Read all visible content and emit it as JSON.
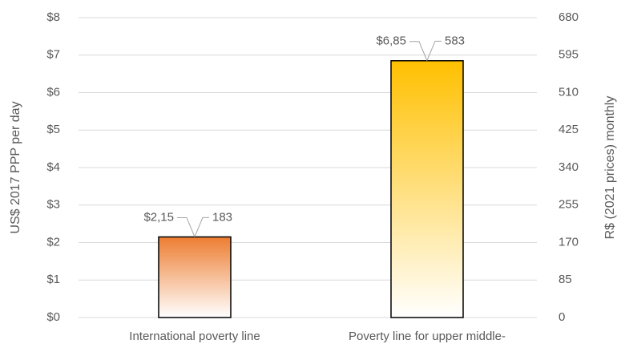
{
  "chart_data": {
    "type": "bar",
    "categories": [
      "International poverty line",
      "Poverty line for upper middle-"
    ],
    "series": [
      {
        "values": [
          2.15,
          6.85
        ],
        "value_labels": [
          "$2,15",
          "$6,85"
        ],
        "colors": [
          "#ED7D31",
          "#FFC000"
        ]
      },
      {
        "axis": "y2",
        "values": [
          183,
          583
        ]
      }
    ],
    "ylabel": "US$ 2017 PPP per day",
    "y2label": "R$ (2021 prices) monthly",
    "ylim": [
      0,
      8
    ],
    "yticks": [
      {
        "value": 0,
        "label": "$0"
      },
      {
        "value": 1,
        "label": "$1"
      },
      {
        "value": 2,
        "label": "$2"
      },
      {
        "value": 3,
        "label": "$3"
      },
      {
        "value": 4,
        "label": "$4"
      },
      {
        "value": 5,
        "label": "$5"
      },
      {
        "value": 6,
        "label": "$6"
      },
      {
        "value": 7,
        "label": "$7"
      },
      {
        "value": 8,
        "label": "$8"
      }
    ],
    "y2lim": [
      0,
      680
    ],
    "y2ticks": [
      0,
      85,
      170,
      255,
      340,
      425,
      510,
      595,
      680
    ],
    "grid": true
  }
}
